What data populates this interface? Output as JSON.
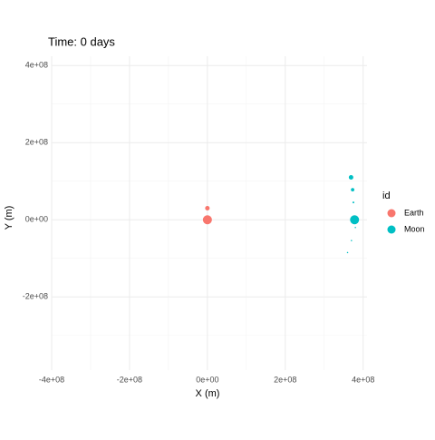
{
  "chart_data": {
    "type": "scatter",
    "title": "Time: 0 days",
    "x_label": "X (m)",
    "y_label": "Y (m)",
    "xlim": [
      -400000000,
      410000000
    ],
    "ylim": [
      -390000000,
      424000000
    ],
    "xticks": [
      {
        "value": -400000000,
        "label": "-4e+08"
      },
      {
        "value": -200000000,
        "label": "-2e+08"
      },
      {
        "value": 0,
        "label": "0e+00"
      },
      {
        "value": 200000000,
        "label": "2e+08"
      },
      {
        "value": 400000000,
        "label": "4e+08"
      }
    ],
    "yticks": [
      {
        "value": -200000000,
        "label": "-2e+08"
      },
      {
        "value": 0,
        "label": "0e+00"
      },
      {
        "value": 200000000,
        "label": "2e+08"
      },
      {
        "value": 400000000,
        "label": "4e+08"
      }
    ],
    "xminor": [
      -300000000,
      -100000000,
      100000000,
      300000000
    ],
    "yminor": [
      -300000000,
      -100000000,
      100000000,
      300000000
    ],
    "grid": true,
    "legend_title": "id",
    "legend": "right",
    "series": [
      {
        "name": "Earth",
        "color": "#F8766D",
        "x": [
          0,
          0
        ],
        "values": [
          0,
          30000000
        ],
        "sizes": [
          4,
          2
        ]
      },
      {
        "name": "Moon",
        "color": "#00BFC4",
        "x": [
          378000000,
          369000000,
          373000000,
          375000000,
          380000000,
          370000000,
          360000000
        ],
        "values": [
          0,
          110000000,
          78000000,
          45000000,
          -20000000,
          -54000000,
          -85000000
        ],
        "sizes": [
          4,
          2,
          1.5,
          0.8,
          0.6,
          0.6,
          0.6
        ]
      }
    ]
  }
}
